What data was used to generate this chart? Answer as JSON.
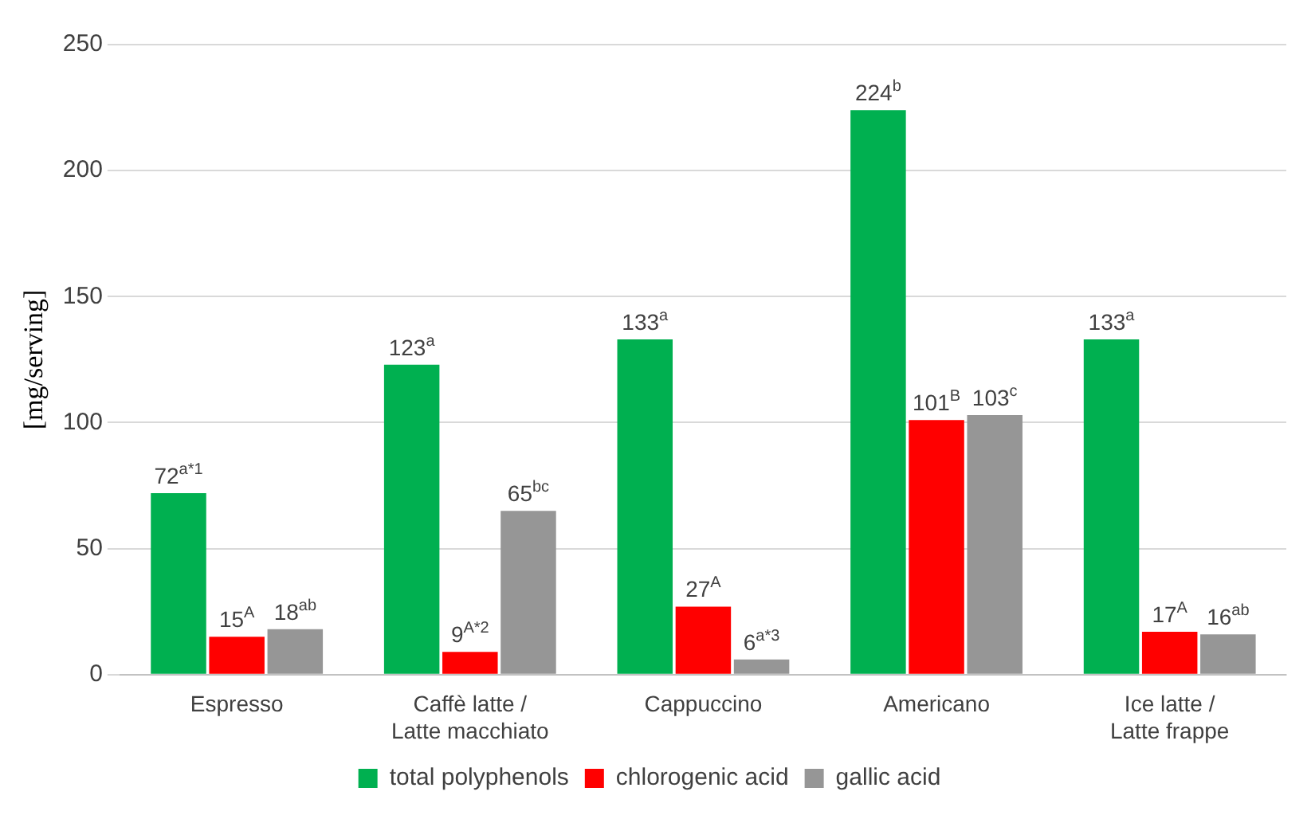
{
  "chart_data": {
    "type": "bar",
    "ylabel": "[mg/serving]",
    "categories": [
      "Espresso",
      "Caffè latte / Latte macchiato",
      "Cappuccino",
      "Americano",
      "Ice latte / Latte frappe"
    ],
    "series": [
      {
        "name": "total polyphenols",
        "color": "#00b050",
        "values": [
          72,
          123,
          133,
          224,
          133
        ],
        "value_labels": [
          "72$^{a*1}$",
          "123$^{a}$",
          "133$^{a}$",
          "224$^{b}$",
          "133$^{a}$"
        ]
      },
      {
        "name": "chlorogenic acid",
        "color": "#ff0000",
        "values": [
          15,
          9,
          27,
          101,
          17
        ],
        "value_labels": [
          "15$^{A}$",
          "9$^{A*2}$",
          "27$^{A}$",
          "101$^{B}$",
          "17$^{A}$"
        ]
      },
      {
        "name": "gallic acid",
        "color": "#969696",
        "values": [
          18,
          65,
          6,
          103,
          16
        ],
        "value_labels": [
          "18$^{ab}$",
          "65$^{bc}$",
          "6$^{a*3}$",
          "103$^{c}$",
          "16$^{ab}$"
        ]
      }
    ],
    "ylim": [
      0,
      250
    ],
    "yticks": [
      0,
      50,
      100,
      150,
      200,
      250
    ],
    "grid": "y",
    "legend": "bottom"
  }
}
